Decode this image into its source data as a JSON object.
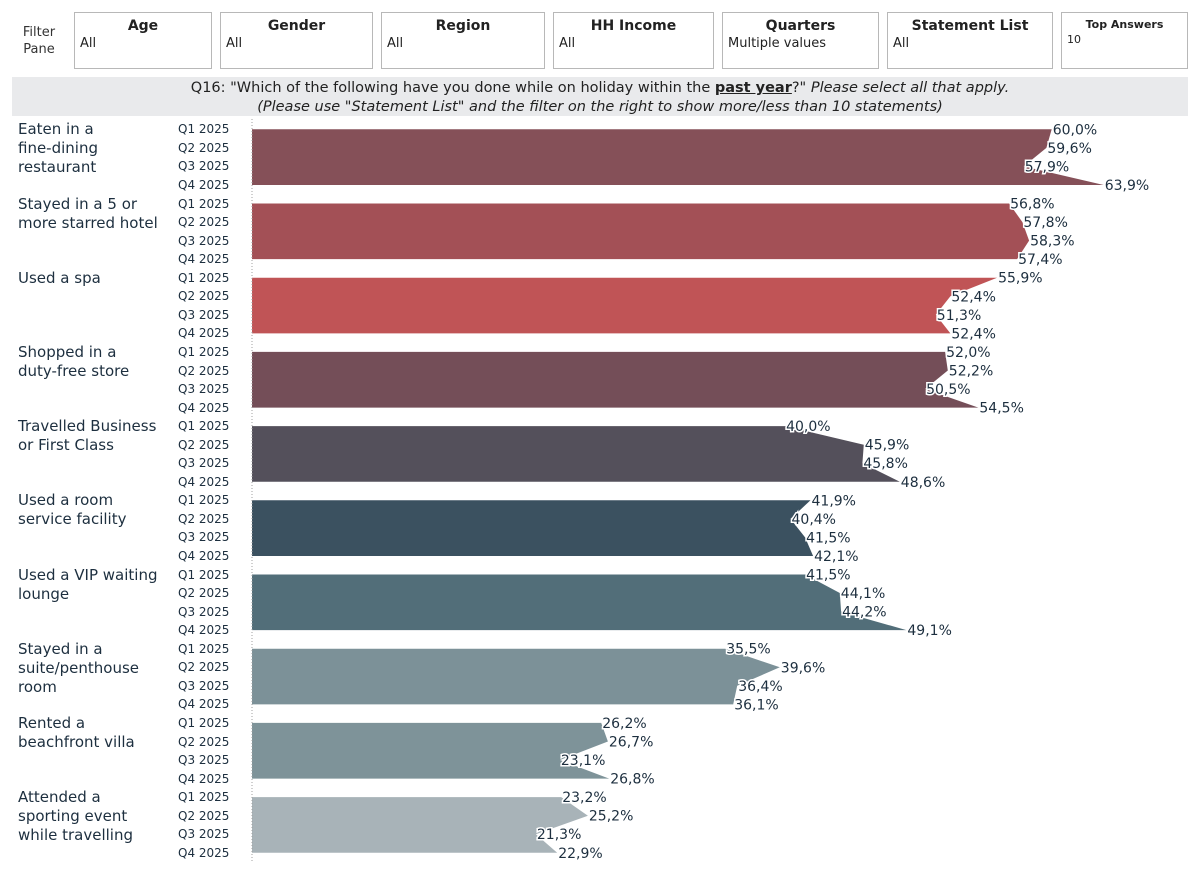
{
  "filters": {
    "pane_label": "Filter Pane",
    "items": [
      {
        "title": "Age",
        "value": "All"
      },
      {
        "title": "Gender",
        "value": "All"
      },
      {
        "title": "Region",
        "value": "All"
      },
      {
        "title": "HH Income",
        "value": "All"
      },
      {
        "title": "Quarters",
        "value": "Multiple values"
      },
      {
        "title": "Statement List",
        "value": "All"
      },
      {
        "title": "Top Answers",
        "value": "10"
      }
    ]
  },
  "question": {
    "prefix": "Q16: \"Which of the following have you done while on holiday within the ",
    "emphasis": "past year",
    "suffix": "?\" ",
    "italic": "Please select all that apply.",
    "line2": "(Please use \"Statement List\" and the filter on the right to show more/less than 10 statements)"
  },
  "chart_data": {
    "type": "area",
    "title": "Q16: Which of the following have you done while on holiday within the past year?",
    "orientation": "horizontal",
    "categories": [
      "Q1 2025",
      "Q2 2025",
      "Q3 2025",
      "Q4 2025"
    ],
    "value_format": "percent, comma decimal",
    "xlim": [
      0,
      70
    ],
    "series": [
      {
        "name": "Eaten in a fine-dining restaurant",
        "label_lines": [
          "Eaten in a",
          "fine-dining",
          "restaurant"
        ],
        "color": "#855058",
        "values": [
          60.0,
          59.6,
          57.9,
          63.9
        ],
        "labels": [
          "60,0%",
          "59,6%",
          "57,9%",
          "63,9%"
        ]
      },
      {
        "name": "Stayed in a 5 or more starred hotel",
        "label_lines": [
          "Stayed in a 5 or",
          "more starred hotel"
        ],
        "color": "#a35056",
        "values": [
          56.8,
          57.8,
          58.3,
          57.4
        ],
        "labels": [
          "56,8%",
          "57,8%",
          "58,3%",
          "57,4%"
        ]
      },
      {
        "name": "Used a spa",
        "label_lines": [
          "Used a spa"
        ],
        "color": "#c05456",
        "values": [
          55.9,
          52.4,
          51.3,
          52.4
        ],
        "labels": [
          "55,9%",
          "52,4%",
          "51,3%",
          "52,4%"
        ]
      },
      {
        "name": "Shopped in a duty-free store",
        "label_lines": [
          "Shopped in a",
          "duty-free store"
        ],
        "color": "#744e58",
        "values": [
          52.0,
          52.2,
          50.5,
          54.5
        ],
        "labels": [
          "52,0%",
          "52,2%",
          "50,5%",
          "54,5%"
        ]
      },
      {
        "name": "Travelled Business or First Class",
        "label_lines": [
          "Travelled Business",
          "or First Class"
        ],
        "color": "#54505b",
        "values": [
          40.0,
          45.9,
          45.8,
          48.6
        ],
        "labels": [
          "40,0%",
          "45,9%",
          "45,8%",
          "48,6%"
        ]
      },
      {
        "name": "Used a room service facility",
        "label_lines": [
          "Used a room",
          "service facility"
        ],
        "color": "#3b5160",
        "values": [
          41.9,
          40.4,
          41.5,
          42.1
        ],
        "labels": [
          "41,9%",
          "40,4%",
          "41,5%",
          "42,1%"
        ]
      },
      {
        "name": "Used a VIP waiting lounge",
        "label_lines": [
          "Used a VIP waiting",
          "lounge"
        ],
        "color": "#526e79",
        "values": [
          41.5,
          44.1,
          44.2,
          49.1
        ],
        "labels": [
          "41,5%",
          "44,1%",
          "44,2%",
          "49,1%"
        ]
      },
      {
        "name": "Stayed in a suite/penthouse room",
        "label_lines": [
          "Stayed in a",
          "suite/penthouse",
          "room"
        ],
        "color": "#7c9198",
        "values": [
          35.5,
          39.6,
          36.4,
          36.1
        ],
        "labels": [
          "35,5%",
          "39,6%",
          "36,4%",
          "36,1%"
        ]
      },
      {
        "name": "Rented a beachfront villa",
        "label_lines": [
          "Rented a",
          "beachfront villa"
        ],
        "color": "#7e9399",
        "values": [
          26.2,
          26.7,
          23.1,
          26.8
        ],
        "labels": [
          "26,2%",
          "26,7%",
          "23,1%",
          "26,8%"
        ]
      },
      {
        "name": "Attended a sporting event while travelling",
        "label_lines": [
          "Attended a",
          "sporting event",
          "while travelling"
        ],
        "color": "#a8b3b8",
        "values": [
          23.2,
          25.2,
          21.3,
          22.9
        ],
        "labels": [
          "23,2%",
          "25,2%",
          "21,3%",
          "22,9%"
        ]
      }
    ]
  }
}
